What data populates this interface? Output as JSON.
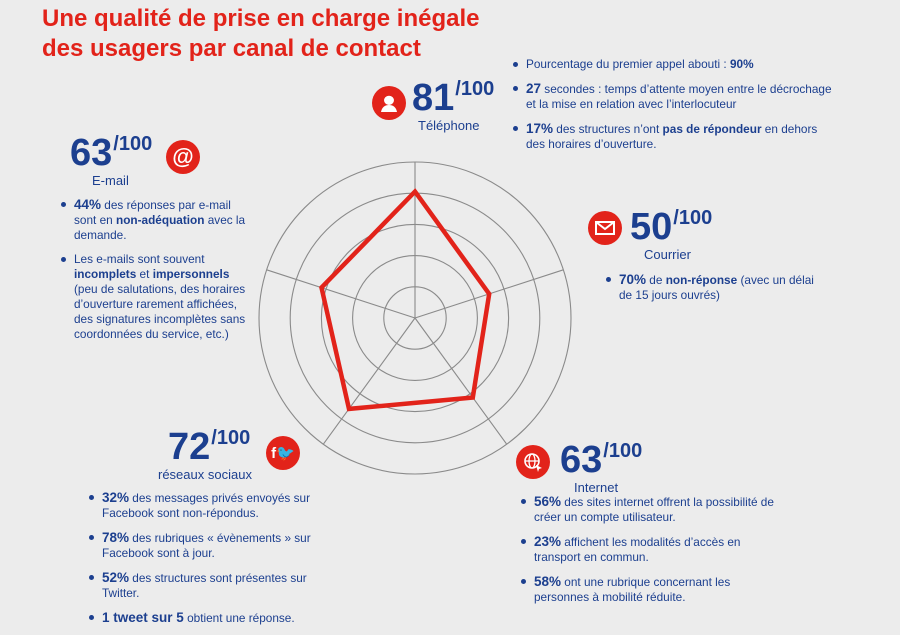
{
  "title": {
    "line1": "Une qualité de prise en charge inégale",
    "line2": "des usagers par canal de contact"
  },
  "colors": {
    "accent": "#e2231a",
    "text": "#1c3f8f",
    "grid": "#8a8a8a",
    "background": "#ececec"
  },
  "chart_data": {
    "type": "radar",
    "axes": [
      "Téléphone",
      "Courrier",
      "Internet",
      "réseaux sociaux",
      "E-mail"
    ],
    "values": [
      81,
      50,
      63,
      72,
      63
    ],
    "max": 100,
    "rings": 5
  },
  "channels": {
    "telephone": {
      "icon": "telephone-support-icon",
      "score": "81",
      "max": "/100",
      "name": "Téléphone",
      "facts": [
        {
          "pre": "Pourcentage du premier appel abouti : ",
          "bold": "90%",
          "post": ""
        },
        {
          "pct": "27",
          "post": " secondes : temps d’attente moyen entre le décrochage et la mise en relation avec l’interlocuteur"
        },
        {
          "pct": "17%",
          "post": " des structures n’ont ",
          "bold": "pas de répondeur",
          "post2": " en dehors des horaires d’ouverture."
        }
      ]
    },
    "email": {
      "icon": "at-sign-icon",
      "score": "63",
      "max": "/100",
      "name": "E-mail",
      "facts": [
        {
          "pct": "44%",
          "post": " des réponses par e-mail sont en ",
          "bold": "non-adéquation",
          "post2": " avec la demande."
        },
        {
          "pre": "Les e-mails sont souvent ",
          "bold": "incomplets",
          "mid": " et ",
          "bold2": "impersonnels",
          "post": " (peu de salutations, des horaires d’ouverture rarement affichées, des signatures incomplètes sans coordonnées du service, etc.)"
        }
      ]
    },
    "courrier": {
      "icon": "envelope-icon",
      "score": "50",
      "max": "/100",
      "name": "Courrier",
      "facts": [
        {
          "pct": "70%",
          "post": " de ",
          "bold": "non-réponse",
          "post2": " (avec un délai de 15 jours ouvrés)"
        }
      ]
    },
    "social": {
      "icon": "facebook-twitter-icon",
      "score": "72",
      "max": "/100",
      "name": "réseaux sociaux",
      "facts": [
        {
          "pct": "32%",
          "post": " des messages privés envoyés sur Facebook sont non-répondus."
        },
        {
          "pct": "78%",
          "post": " des rubriques « évènements » sur Facebook sont à jour."
        },
        {
          "pct": "52%",
          "post": " des structures sont présentes sur Twitter."
        },
        {
          "pct": "1 tweet sur 5",
          "post": " obtient une réponse."
        }
      ]
    },
    "internet": {
      "icon": "globe-cursor-icon",
      "score": "63",
      "max": "/100",
      "name": "Internet",
      "facts": [
        {
          "pct": "56%",
          "post": " des sites internet offrent la possibilité de créer un compte utilisateur."
        },
        {
          "pct": "23%",
          "post": " affichent les modalités d’accès en transport en commun."
        },
        {
          "pct": "58%",
          "post": " ont une rubrique concernant les personnes à mobilité réduite."
        }
      ]
    }
  }
}
